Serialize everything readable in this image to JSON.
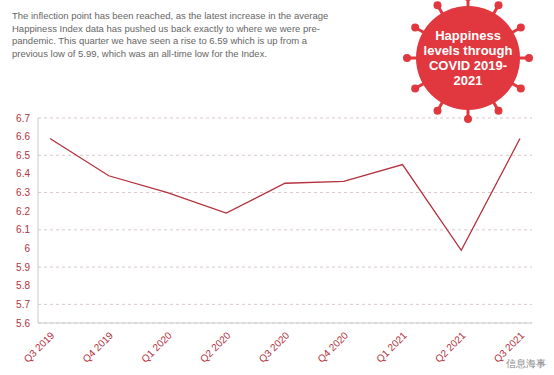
{
  "chart_data": {
    "type": "line",
    "title": "Happiness levels through COVID 2019-2021",
    "annotation": "The inflection point has been reached, as the latest increase in the average Happiness Index data has pushed us back exactly to where we were pre-pandemic. This quarter we have seen a rise to 6.59 which is up from a previous low of 5.99, which was an all-time low for the Index.",
    "watermark": "信息海事",
    "categories": [
      "Q3 2019",
      "Q4 2019",
      "Q1 2020",
      "Q2 2020",
      "Q3 2020",
      "Q4 2020",
      "Q1 2021",
      "Q2 2021",
      "Q3 2021"
    ],
    "values": [
      6.59,
      6.39,
      6.3,
      6.19,
      6.35,
      6.36,
      6.45,
      5.99,
      6.59
    ],
    "color": "#b3303c",
    "ylim": [
      5.6,
      6.7
    ],
    "yticks": [
      5.6,
      5.7,
      5.8,
      5.9,
      6,
      6.1,
      6.2,
      6.3,
      6.4,
      6.5,
      6.6,
      6.7
    ],
    "grid": true,
    "line_style": "solid"
  }
}
